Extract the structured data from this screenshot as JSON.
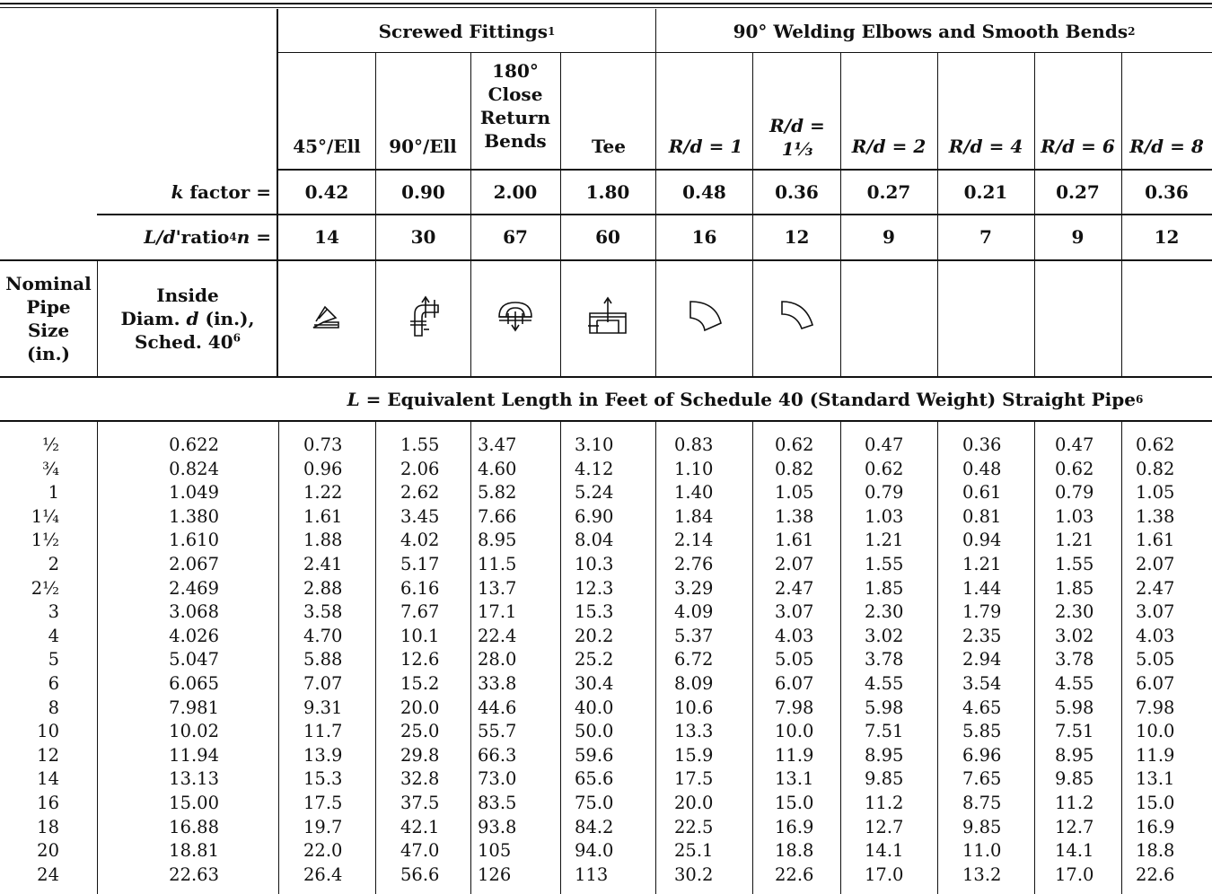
{
  "groups": {
    "screwed": "Screwed Fittings",
    "screwed_note": "1",
    "welding": "90° Welding Elbows and Smooth Bends",
    "welding_note": "2"
  },
  "columns": [
    "45°/Ell",
    "90°/Ell",
    "180° Close Return Bends",
    "Tee",
    "R/d = 1",
    "R/d = 1⅓",
    "R/d = 2",
    "R/d = 4",
    "R/d = 6",
    "R/d = 8"
  ],
  "k_factor": {
    "label_italic": "k",
    "label_rest": " factor =",
    "values": [
      "0.42",
      "0.90",
      "2.00",
      "1.80",
      "0.48",
      "0.36",
      "0.27",
      "0.21",
      "0.27",
      "0.36"
    ]
  },
  "ld_ratio": {
    "label_a": "L/d",
    "label_b": "'ratio",
    "note": "4",
    "label_n": "n",
    "label_eq": " =",
    "values": [
      "14",
      "30",
      "67",
      "60",
      "16",
      "12",
      "9",
      "7",
      "9",
      "12"
    ]
  },
  "nominal_header": [
    "Nominal",
    "Pipe",
    "Size",
    "(in.)"
  ],
  "inside_header": {
    "line1": "Inside",
    "line2_a": "Diam. ",
    "line2_d": "d",
    "line2_b": " (in.),",
    "line3": "Sched. 40",
    "note": "6"
  },
  "icons": [
    "45-elbow-icon",
    "90-elbow-icon",
    "return-bend-icon",
    "tee-icon",
    "bend-r1-icon",
    "bend-r133-icon"
  ],
  "caption": {
    "L": "L",
    "text": " = Equivalent Length in Feet of Schedule 40 (Standard Weight) Straight Pipe",
    "note": "6"
  },
  "rows": [
    [
      "½",
      "0.622",
      "0.73",
      "1.55",
      "3.47",
      "3.10",
      "0.83",
      "0.62",
      "0.47",
      "0.36",
      "0.47",
      "0.62"
    ],
    [
      "¾",
      "0.824",
      "0.96",
      "2.06",
      "4.60",
      "4.12",
      "1.10",
      "0.82",
      "0.62",
      "0.48",
      "0.62",
      "0.82"
    ],
    [
      "1",
      "1.049",
      "1.22",
      "2.62",
      "5.82",
      "5.24",
      "1.40",
      "1.05",
      "0.79",
      "0.61",
      "0.79",
      "1.05"
    ],
    [
      "1¼",
      "1.380",
      "1.61",
      "3.45",
      "7.66",
      "6.90",
      "1.84",
      "1.38",
      "1.03",
      "0.81",
      "1.03",
      "1.38"
    ],
    [
      "1½",
      "1.610",
      "1.88",
      "4.02",
      "8.95",
      "8.04",
      "2.14",
      "1.61",
      "1.21",
      "0.94",
      "1.21",
      "1.61"
    ],
    [
      "2",
      "2.067",
      "2.41",
      "5.17",
      "11.5",
      "10.3",
      "2.76",
      "2.07",
      "1.55",
      "1.21",
      "1.55",
      "2.07"
    ],
    [
      "2½",
      "2.469",
      "2.88",
      "6.16",
      "13.7",
      "12.3",
      "3.29",
      "2.47",
      "1.85",
      "1.44",
      "1.85",
      "2.47"
    ],
    [
      "3",
      "3.068",
      "3.58",
      "7.67",
      "17.1",
      "15.3",
      "4.09",
      "3.07",
      "2.30",
      "1.79",
      "2.30",
      "3.07"
    ],
    [
      "4",
      "4.026",
      "4.70",
      "10.1",
      "22.4",
      "20.2",
      "5.37",
      "4.03",
      "3.02",
      "2.35",
      "3.02",
      "4.03"
    ],
    [
      "5",
      "5.047",
      "5.88",
      "12.6",
      "28.0",
      "25.2",
      "6.72",
      "5.05",
      "3.78",
      "2.94",
      "3.78",
      "5.05"
    ],
    [
      "6",
      "6.065",
      "7.07",
      "15.2",
      "33.8",
      "30.4",
      "8.09",
      "6.07",
      "4.55",
      "3.54",
      "4.55",
      "6.07"
    ],
    [
      "8",
      "7.981",
      "9.31",
      "20.0",
      "44.6",
      "40.0",
      "10.6",
      "7.98",
      "5.98",
      "4.65",
      "5.98",
      "7.98"
    ],
    [
      "10",
      "10.02",
      "11.7",
      "25.0",
      "55.7",
      "50.0",
      "13.3",
      "10.0",
      "7.51",
      "5.85",
      "7.51",
      "10.0"
    ],
    [
      "12",
      "11.94",
      "13.9",
      "29.8",
      "66.3",
      "59.6",
      "15.9",
      "11.9",
      "8.95",
      "6.96",
      "8.95",
      "11.9"
    ],
    [
      "14",
      "13.13",
      "15.3",
      "32.8",
      "73.0",
      "65.6",
      "17.5",
      "13.1",
      "9.85",
      "7.65",
      "9.85",
      "13.1"
    ],
    [
      "16",
      "15.00",
      "17.5",
      "37.5",
      "83.5",
      "75.0",
      "20.0",
      "15.0",
      "11.2",
      "8.75",
      "11.2",
      "15.0"
    ],
    [
      "18",
      "16.88",
      "19.7",
      "42.1",
      "93.8",
      "84.2",
      "22.5",
      "16.9",
      "12.7",
      "9.85",
      "12.7",
      "16.9"
    ],
    [
      "20",
      "18.81",
      "22.0",
      "47.0",
      "105",
      "94.0",
      "25.1",
      "18.8",
      "14.1",
      "11.0",
      "14.1",
      "18.8"
    ],
    [
      "24",
      "22.63",
      "26.4",
      "56.6",
      "126",
      "113",
      "30.2",
      "22.6",
      "17.0",
      "13.2",
      "17.0",
      "22.6"
    ]
  ]
}
